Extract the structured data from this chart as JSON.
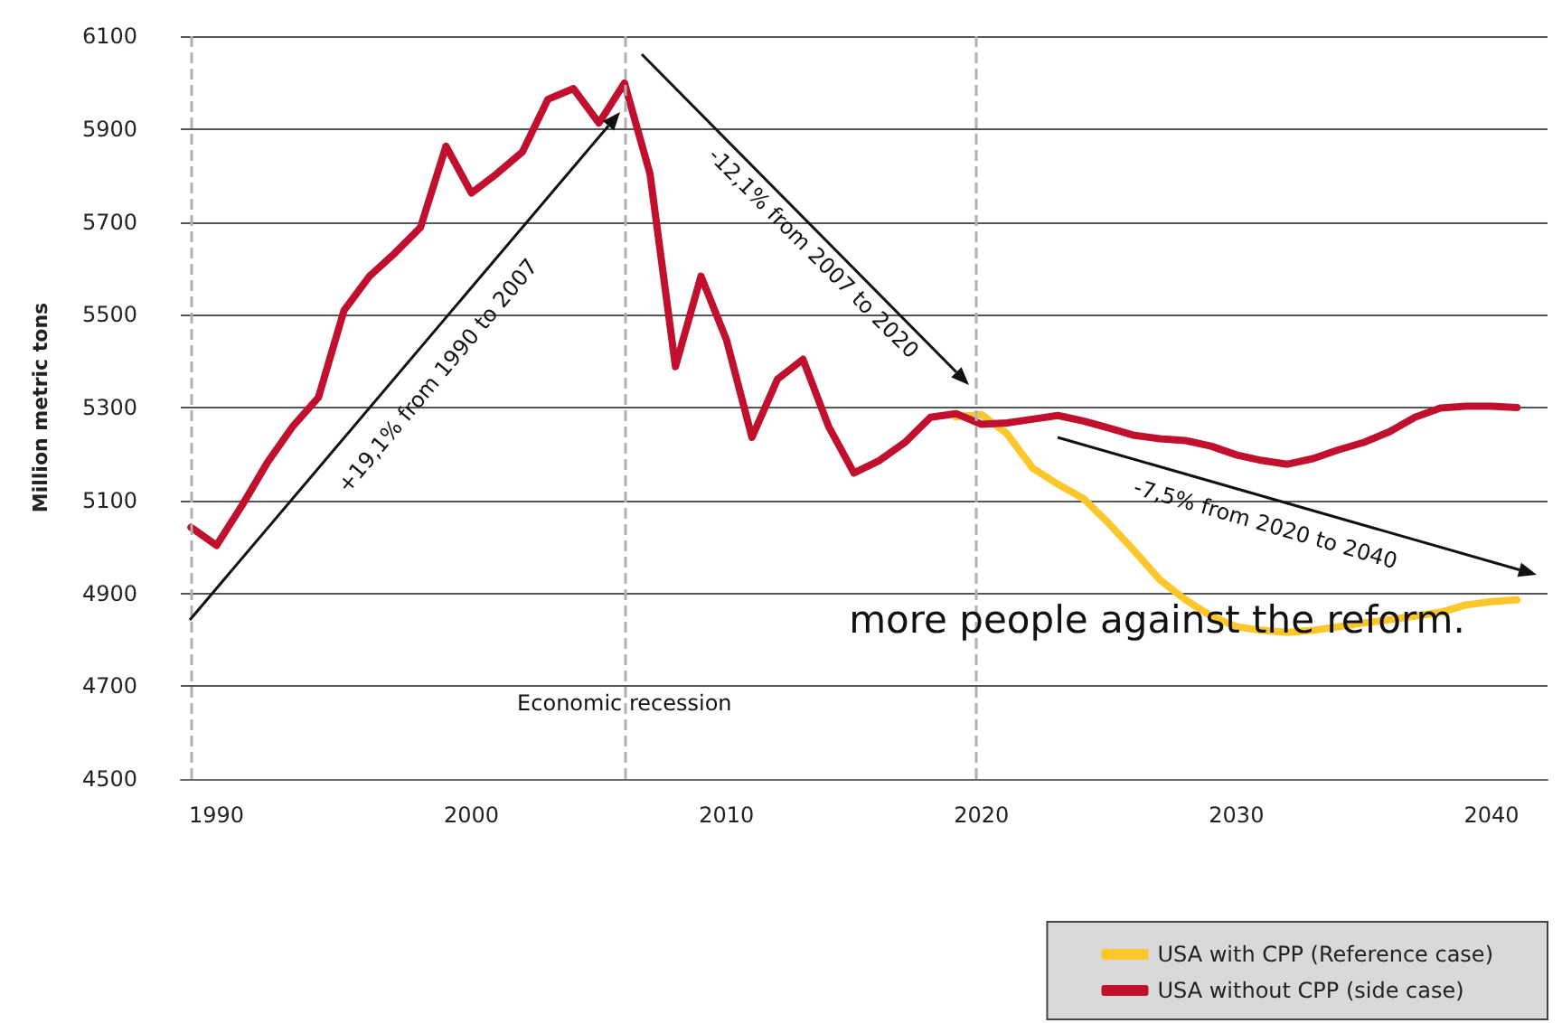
{
  "chart_data": {
    "type": "line",
    "ylabel": "Million metric tons",
    "x": [
      1989,
      1990,
      1991,
      1992,
      1993,
      1994,
      1995,
      1996,
      1997,
      1998,
      1999,
      2000,
      2001,
      2002,
      2003,
      2004,
      2005,
      2006,
      2007,
      2008,
      2009,
      2010,
      2011,
      2012,
      2013,
      2014,
      2015,
      2016,
      2017,
      2018,
      2019,
      2020,
      2021,
      2022,
      2023,
      2024,
      2025,
      2026,
      2027,
      2028,
      2029,
      2030,
      2031,
      2032,
      2033,
      2034,
      2035,
      2036,
      2037,
      2038,
      2039,
      2040,
      2041
    ],
    "series": [
      {
        "name": "USA with CPP (Reference case)",
        "color": "#fcc72c",
        "values": [
          null,
          null,
          null,
          null,
          null,
          null,
          null,
          null,
          null,
          null,
          null,
          null,
          null,
          null,
          null,
          null,
          null,
          null,
          null,
          null,
          null,
          null,
          null,
          null,
          null,
          null,
          null,
          null,
          null,
          null,
          5280,
          5285,
          5244,
          5170,
          5135,
          5104,
          5050,
          4991,
          4929,
          4886,
          4851,
          4828,
          4820,
          4816,
          4820,
          4828,
          4836,
          4843,
          4851,
          4859,
          4875,
          4882,
          4886
        ]
      },
      {
        "name": "USA without CPP (side case)",
        "color": "#c0102e",
        "values": [
          5042,
          5003,
          5089,
          5182,
          5260,
          5322,
          5509,
          5583,
          5633,
          5688,
          5863,
          5762,
          5804,
          5851,
          5964,
          5987,
          5913,
          5999,
          5804,
          5388,
          5583,
          5446,
          5236,
          5361,
          5404,
          5260,
          5159,
          5186,
          5225,
          5279,
          5287,
          5264,
          5267,
          5275,
          5283,
          5271,
          5256,
          5240,
          5233,
          5229,
          5217,
          5198,
          5186,
          5178,
          5190,
          5209,
          5225,
          5248,
          5279,
          5299,
          5303,
          5303,
          5300
        ]
      }
    ],
    "xlim": [
      1988.6,
      2042.2
    ],
    "xticks": [
      1990,
      2000,
      2010,
      2020,
      2030,
      2040
    ],
    "ylim": [
      4500,
      6100
    ],
    "yticks": [
      4500,
      4700,
      4900,
      5100,
      5300,
      5500,
      5700,
      5900,
      6100
    ],
    "grid": "y",
    "legend": "bottom right",
    "marker": "none",
    "line_style": "solid",
    "ref_lines": [
      {
        "axis": "x",
        "value": 1989,
        "color": "#b0b0b0",
        "line_style": "dashed"
      },
      {
        "axis": "x",
        "value": 2006,
        "label": "Economic recession",
        "color": "#b0b0b0",
        "line_style": "dashed"
      },
      {
        "axis": "x",
        "value": 2019.8,
        "color": "#b0b0b0",
        "line_style": "dashed"
      }
    ],
    "annotations": [
      "+19,1% from 1990 to 2007",
      "-12,1% from 2007 to 2020",
      "-7,5% from 2020 to 2040",
      "more people against the reform."
    ]
  }
}
